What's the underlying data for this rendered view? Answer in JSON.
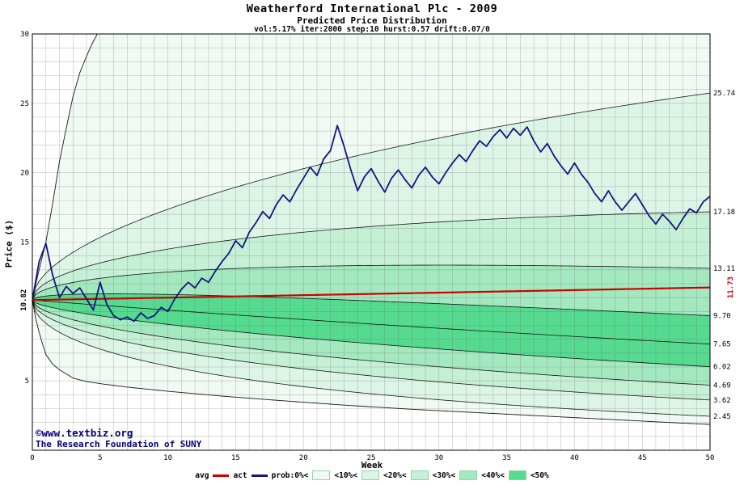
{
  "header": {
    "title": "Weatherford International Plc - 2009",
    "subtitle": "Predicted Price Distribution",
    "params": "vol:5.17% iter:2000 step:10 hurst:0.57 drift:0.07/0"
  },
  "watermark": {
    "line1": "©www.textbiz.org",
    "line2": "The Research Foundation of SUNY"
  },
  "legend": {
    "avg_label": "avg",
    "act_label": "act",
    "prob_labels": [
      "prob:0%<",
      "<10%<",
      "<20%<",
      "<30%<",
      "<40%<",
      "<50%"
    ]
  },
  "chart_data": {
    "type": "line",
    "title": "Weatherford International Plc - 2009",
    "subtitle": "Predicted Price Distribution",
    "xlabel": "Week",
    "ylabel": "Price ($)",
    "xlim": [
      0,
      50
    ],
    "ylim": [
      0,
      30
    ],
    "grid": true,
    "grid_step": 1,
    "x_ticks_labeled": [
      0,
      5,
      10,
      15,
      20,
      25,
      30,
      35,
      40,
      45,
      50
    ],
    "y_tick_labels_left": [
      5,
      15,
      20,
      25,
      30
    ],
    "start_price": 10.82,
    "start_label": "10.82",
    "avg_final": 11.73,
    "avg_final_label": "11.73",
    "avg_color": "#cc0000",
    "act_color": "#15157e",
    "band_colors": [
      "#f0faf3",
      "#ddf5e6",
      "#c6f0d6",
      "#a3e8bf",
      "#55da90"
    ],
    "decile_finals": [
      25.74,
      17.18,
      13.11,
      9.7,
      7.65,
      6.02,
      4.69,
      3.62,
      2.45
    ],
    "right_labels": [
      "25.74",
      "17.18",
      "13.11",
      "9.70",
      "7.65",
      "6.02",
      "4.69",
      "3.62",
      "2.45"
    ],
    "envelope_top": [
      [
        0,
        10.82
      ],
      [
        0.3,
        12.2
      ],
      [
        0.7,
        13.8
      ],
      [
        1,
        15.0
      ],
      [
        1.5,
        17.8
      ],
      [
        2,
        20.8
      ],
      [
        2.5,
        23.2
      ],
      [
        3,
        25.5
      ],
      [
        3.5,
        27.2
      ],
      [
        4,
        28.4
      ],
      [
        4.4,
        29.3
      ],
      [
        4.8,
        30.0
      ]
    ],
    "envelope_bottom": [
      [
        0,
        10.82
      ],
      [
        0.3,
        9.2
      ],
      [
        0.7,
        7.8
      ],
      [
        1,
        6.9
      ],
      [
        1.5,
        6.2
      ],
      [
        2,
        5.8
      ],
      [
        3,
        5.2
      ],
      [
        4,
        4.95
      ],
      [
        5,
        4.8
      ],
      [
        7,
        4.55
      ],
      [
        10,
        4.25
      ],
      [
        14,
        3.9
      ],
      [
        18,
        3.6
      ],
      [
        23,
        3.25
      ],
      [
        28,
        2.95
      ],
      [
        33,
        2.7
      ],
      [
        38,
        2.45
      ],
      [
        43,
        2.2
      ],
      [
        47,
        2.0
      ],
      [
        50,
        1.86
      ]
    ],
    "act_series": {
      "x_step": 0.5,
      "values": [
        10.82,
        13.6,
        14.9,
        12.6,
        11.0,
        11.8,
        11.3,
        11.7,
        10.9,
        10.1,
        12.1,
        10.5,
        9.7,
        9.4,
        9.6,
        9.3,
        9.9,
        9.5,
        9.7,
        10.3,
        10.0,
        10.9,
        11.6,
        12.1,
        11.7,
        12.4,
        12.1,
        12.9,
        13.6,
        14.2,
        15.1,
        14.6,
        15.7,
        16.4,
        17.2,
        16.7,
        17.7,
        18.4,
        17.9,
        18.8,
        19.6,
        20.4,
        19.8,
        21.0,
        21.6,
        23.4,
        21.9,
        20.2,
        18.7,
        19.7,
        20.3,
        19.4,
        18.6,
        19.6,
        20.2,
        19.5,
        18.9,
        19.8,
        20.4,
        19.7,
        19.2,
        20.0,
        20.7,
        21.3,
        20.8,
        21.6,
        22.3,
        21.9,
        22.6,
        23.1,
        22.5,
        23.2,
        22.7,
        23.3,
        22.3,
        21.5,
        22.1,
        21.2,
        20.5,
        19.9,
        20.7,
        19.9,
        19.3,
        18.5,
        17.9,
        18.7,
        17.9,
        17.3,
        17.9,
        18.5,
        17.7,
        16.9,
        16.3,
        17.0,
        16.5,
        15.9,
        16.7,
        17.4,
        17.1,
        17.9,
        18.3
      ]
    }
  }
}
